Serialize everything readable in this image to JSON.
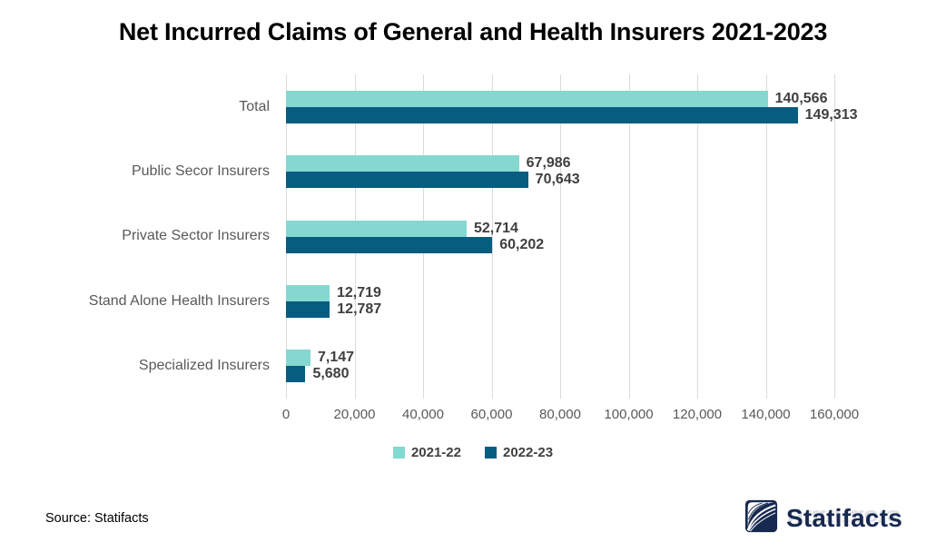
{
  "chart_data": {
    "type": "bar",
    "orientation": "horizontal",
    "title": "Net Incurred Claims of General and Health Insurers 2021-2023",
    "categories": [
      "Total",
      "Public Secor Insurers",
      "Private Sector Insurers",
      "Stand Alone Health Insurers",
      "Specialized Insurers"
    ],
    "series": [
      {
        "name": "2021-22",
        "color": "#85d8d0",
        "values": [
          140566,
          67986,
          52714,
          12719,
          7147
        ],
        "labels": [
          "140,566",
          "67,986",
          "52,714",
          "12,719",
          "7,147"
        ]
      },
      {
        "name": "2022-23",
        "color": "#075d80",
        "values": [
          149313,
          70643,
          60202,
          12787,
          5680
        ],
        "labels": [
          "149,313",
          "70,643",
          "60,202",
          "12,787",
          "5,680"
        ]
      }
    ],
    "xlabel": "",
    "ylabel": "",
    "xlim": [
      0,
      160000
    ],
    "xticks": {
      "values": [
        0,
        20000,
        40000,
        60000,
        80000,
        100000,
        120000,
        140000,
        160000
      ],
      "labels": [
        "0",
        "20,000",
        "40,000",
        "60,000",
        "80,000",
        "100,000",
        "120,000",
        "140,000",
        "160,000"
      ]
    },
    "grid": "vertical-only",
    "gridline_color": "#dbdbdb",
    "legend_position": "bottom"
  },
  "footer": {
    "source": "Source: Statifacts",
    "brand": "Statifacts",
    "brand_color": "#17294f"
  }
}
